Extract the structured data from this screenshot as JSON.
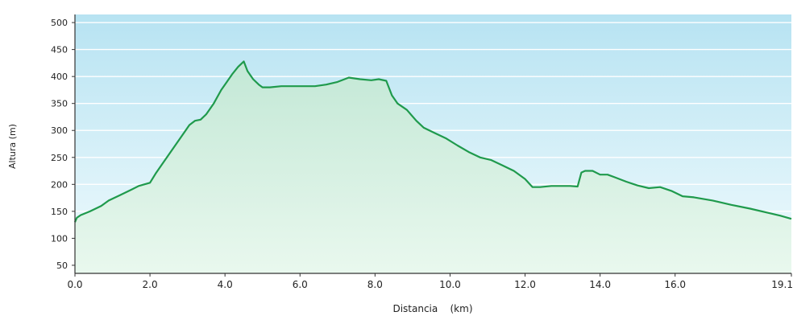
{
  "chart_data": {
    "type": "area",
    "xlabel": "Distancia    (km)",
    "ylabel": "Altura (m)",
    "xlim": [
      0,
      19.1
    ],
    "ylim": [
      35,
      515
    ],
    "x_ticks": [
      {
        "value": 0,
        "label": "0.0"
      },
      {
        "value": 2,
        "label": "2.0"
      },
      {
        "value": 4,
        "label": "4.0"
      },
      {
        "value": 6,
        "label": "6.0"
      },
      {
        "value": 8,
        "label": "8.0"
      },
      {
        "value": 10,
        "label": "10.0"
      },
      {
        "value": 12,
        "label": "12.0"
      },
      {
        "value": 14,
        "label": "14.0"
      },
      {
        "value": 16,
        "label": "16.0"
      },
      {
        "value": 19.1,
        "label": "19.1"
      }
    ],
    "y_ticks": [
      50,
      100,
      150,
      200,
      250,
      300,
      350,
      400,
      450,
      500
    ],
    "grid": true,
    "colors": {
      "line": "#1f9a4c",
      "fill_top": "#c3e8d6",
      "fill_bottom": "#e9f8ee",
      "bg_top": "#b7e3f2",
      "bg_bottom": "#f1fbfd",
      "grid": "#ffffff"
    },
    "series": [
      {
        "x": [
          0.0,
          0.05,
          0.15,
          0.4,
          0.7,
          0.9,
          1.2,
          1.5,
          1.7,
          1.85,
          2.0,
          2.15,
          2.3,
          2.5,
          2.7,
          2.9,
          3.05,
          3.2,
          3.35,
          3.5,
          3.7,
          3.9,
          4.05,
          4.2,
          4.35,
          4.5,
          4.6,
          4.75,
          4.9,
          5.0,
          5.2,
          5.5,
          5.8,
          6.1,
          6.4,
          6.7,
          7.0,
          7.3,
          7.6,
          7.9,
          8.1,
          8.3,
          8.45,
          8.6,
          8.85,
          9.1,
          9.3,
          9.6,
          9.9,
          10.2,
          10.5,
          10.8,
          11.1,
          11.4,
          11.7,
          12.0,
          12.2,
          12.4,
          12.7,
          13.0,
          13.2,
          13.4,
          13.5,
          13.6,
          13.8,
          14.0,
          14.2,
          14.4,
          14.7,
          15.0,
          15.3,
          15.6,
          15.9,
          16.2,
          16.5,
          17.0,
          17.5,
          18.0,
          18.5,
          18.8,
          19.1
        ],
        "y": [
          130,
          138,
          143,
          150,
          160,
          170,
          180,
          190,
          197,
          200,
          203,
          220,
          235,
          255,
          275,
          295,
          310,
          318,
          320,
          330,
          350,
          375,
          390,
          405,
          418,
          428,
          410,
          395,
          385,
          380,
          380,
          382,
          382,
          382,
          382,
          385,
          390,
          398,
          395,
          393,
          395,
          392,
          365,
          350,
          338,
          318,
          305,
          295,
          285,
          272,
          260,
          250,
          245,
          235,
          225,
          210,
          195,
          195,
          197,
          197,
          197,
          196,
          222,
          225,
          225,
          218,
          218,
          213,
          205,
          198,
          193,
          195,
          188,
          178,
          176,
          170,
          162,
          155,
          147,
          142,
          136
        ]
      }
    ]
  }
}
